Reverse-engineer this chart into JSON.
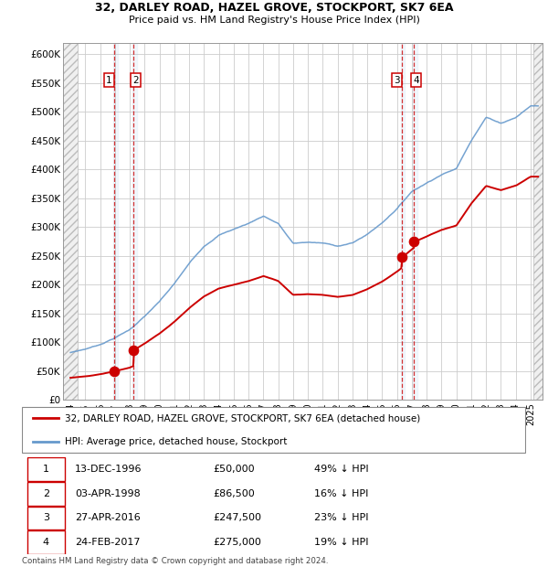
{
  "title1": "32, DARLEY ROAD, HAZEL GROVE, STOCKPORT, SK7 6EA",
  "title2": "Price paid vs. HM Land Registry's House Price Index (HPI)",
  "ylabel_ticks": [
    "£0",
    "£50K",
    "£100K",
    "£150K",
    "£200K",
    "£250K",
    "£300K",
    "£350K",
    "£400K",
    "£450K",
    "£500K",
    "£550K",
    "£600K"
  ],
  "ytick_values": [
    0,
    50000,
    100000,
    150000,
    200000,
    250000,
    300000,
    350000,
    400000,
    450000,
    500000,
    550000,
    600000
  ],
  "xlim_start": 1993.5,
  "xlim_end": 2025.8,
  "ylim_min": 0,
  "ylim_max": 620000,
  "sale_dates": [
    1996.95,
    1998.25,
    2016.32,
    2017.15
  ],
  "sale_prices": [
    50000,
    86500,
    247500,
    275000
  ],
  "sale_labels": [
    "1",
    "2",
    "3",
    "4"
  ],
  "legend_line1": "32, DARLEY ROAD, HAZEL GROVE, STOCKPORT, SK7 6EA (detached house)",
  "legend_line2": "HPI: Average price, detached house, Stockport",
  "table_rows": [
    [
      "1",
      "13-DEC-1996",
      "£50,000",
      "49% ↓ HPI"
    ],
    [
      "2",
      "03-APR-1998",
      "£86,500",
      "16% ↓ HPI"
    ],
    [
      "3",
      "27-APR-2016",
      "£247,500",
      "23% ↓ HPI"
    ],
    [
      "4",
      "24-FEB-2017",
      "£275,000",
      "19% ↓ HPI"
    ]
  ],
  "footer": "Contains HM Land Registry data © Crown copyright and database right 2024.\nThis data is licensed under the Open Government Licence v3.0.",
  "red_color": "#cc0000",
  "blue_color": "#6699cc",
  "grid_color": "#cccccc",
  "label_box_color": "#cc0000",
  "hpi_knots_x": [
    1994.0,
    1995.0,
    1996.0,
    1997.0,
    1998.0,
    1999.0,
    2000.0,
    2001.0,
    2002.0,
    2003.0,
    2004.0,
    2005.0,
    2006.0,
    2007.0,
    2008.0,
    2009.0,
    2010.0,
    2011.0,
    2012.0,
    2013.0,
    2014.0,
    2015.0,
    2016.0,
    2017.0,
    2018.0,
    2019.0,
    2020.0,
    2021.0,
    2022.0,
    2023.0,
    2024.0,
    2025.0
  ],
  "hpi_knots_y": [
    82000,
    88000,
    96000,
    108000,
    122000,
    145000,
    170000,
    200000,
    235000,
    265000,
    285000,
    295000,
    305000,
    318000,
    305000,
    270000,
    272000,
    270000,
    265000,
    270000,
    285000,
    305000,
    330000,
    360000,
    375000,
    390000,
    400000,
    450000,
    490000,
    480000,
    490000,
    510000
  ]
}
